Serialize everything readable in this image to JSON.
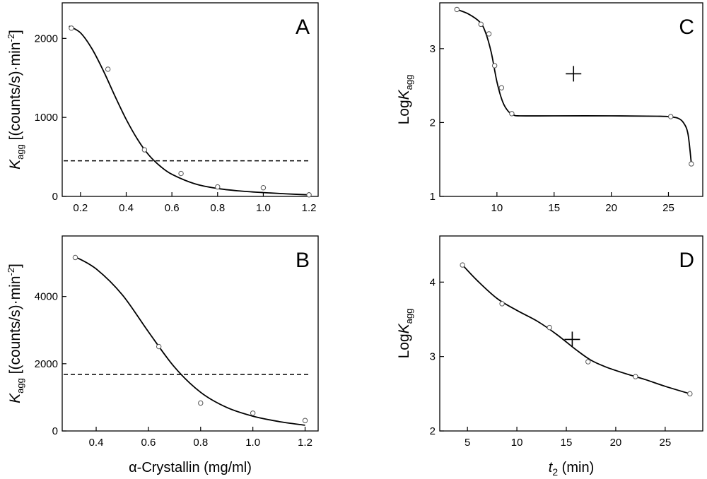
{
  "chart_data": [
    {
      "panel": "A",
      "type": "scatter",
      "xlim": [
        0.12,
        1.24
      ],
      "ylim": [
        0,
        2450
      ],
      "xticks": [
        0.2,
        0.4,
        0.6,
        0.8,
        1.0,
        1.2
      ],
      "xtick_labels": [
        "0.2",
        "0.4",
        "0.6",
        "0.8",
        "1.0",
        "1.2"
      ],
      "yticks": [
        0,
        1000,
        2000
      ],
      "ytick_labels": [
        "0",
        "1000",
        "2000"
      ],
      "points": [
        [
          0.16,
          2130
        ],
        [
          0.32,
          1610
        ],
        [
          0.48,
          590
        ],
        [
          0.64,
          290
        ],
        [
          0.8,
          120
        ],
        [
          1.0,
          110
        ],
        [
          1.2,
          20
        ]
      ],
      "fit": [
        [
          0.15,
          2155
        ],
        [
          0.2,
          2070
        ],
        [
          0.25,
          1870
        ],
        [
          0.3,
          1590
        ],
        [
          0.35,
          1275
        ],
        [
          0.4,
          975
        ],
        [
          0.45,
          720
        ],
        [
          0.5,
          520
        ],
        [
          0.55,
          380
        ],
        [
          0.6,
          280
        ],
        [
          0.7,
          160
        ],
        [
          0.8,
          100
        ],
        [
          0.9,
          68
        ],
        [
          1.0,
          48
        ],
        [
          1.1,
          32
        ],
        [
          1.2,
          20
        ]
      ],
      "dashed_y": 450,
      "ylabel": {
        "main": "K",
        "sub": "agg",
        "rest": " [(counts/s)·min",
        "sup": "-2",
        "end": "]"
      }
    },
    {
      "panel": "B",
      "type": "scatter",
      "xlim": [
        0.27,
        1.25
      ],
      "ylim": [
        0,
        5800
      ],
      "xticks": [
        0.4,
        0.6,
        0.8,
        1.0,
        1.2
      ],
      "xtick_labels": [
        "0.4",
        "0.6",
        "0.8",
        "1.0",
        "1.2"
      ],
      "yticks": [
        0,
        2000,
        4000
      ],
      "ytick_labels": [
        "0",
        "2000",
        "4000"
      ],
      "points": [
        [
          0.32,
          5160
        ],
        [
          0.64,
          2510
        ],
        [
          0.8,
          830
        ],
        [
          1.0,
          530
        ],
        [
          1.2,
          310
        ]
      ],
      "fit": [
        [
          0.32,
          5180
        ],
        [
          0.4,
          4820
        ],
        [
          0.5,
          4050
        ],
        [
          0.6,
          2950
        ],
        [
          0.7,
          1900
        ],
        [
          0.8,
          1150
        ],
        [
          0.9,
          700
        ],
        [
          1.0,
          440
        ],
        [
          1.1,
          280
        ],
        [
          1.2,
          170
        ]
      ],
      "dashed_y": 1680,
      "xlabel": "α-Crystallin (mg/ml)",
      "ylabel": {
        "main": "K",
        "sub": "agg",
        "rest": " [(counts/s)·min",
        "sup": "-2",
        "end": "]"
      }
    },
    {
      "panel": "C",
      "type": "scatter",
      "xlim": [
        5,
        28
      ],
      "ylim": [
        1,
        3.62
      ],
      "xticks": [
        10,
        15,
        20,
        25
      ],
      "xtick_labels": [
        "10",
        "15",
        "20",
        "25"
      ],
      "yticks": [
        1,
        2,
        3
      ],
      "ytick_labels": [
        "1",
        "2",
        "3"
      ],
      "points": [
        [
          6.5,
          3.53
        ],
        [
          8.6,
          3.33
        ],
        [
          9.3,
          3.2
        ],
        [
          9.8,
          2.77
        ],
        [
          10.4,
          2.47
        ],
        [
          11.3,
          2.12
        ],
        [
          25.2,
          2.08
        ],
        [
          27.0,
          1.44
        ]
      ],
      "fit": [
        [
          6.5,
          3.53
        ],
        [
          7.5,
          3.47
        ],
        [
          8.5,
          3.36
        ],
        [
          9.0,
          3.22
        ],
        [
          9.5,
          2.95
        ],
        [
          10.0,
          2.55
        ],
        [
          10.5,
          2.28
        ],
        [
          11.0,
          2.15
        ],
        [
          11.5,
          2.1
        ],
        [
          12.0,
          2.09
        ],
        [
          15,
          2.09
        ],
        [
          20,
          2.09
        ],
        [
          24.0,
          2.085
        ],
        [
          25.0,
          2.08
        ],
        [
          25.8,
          2.06
        ],
        [
          26.3,
          2.0
        ],
        [
          26.7,
          1.85
        ],
        [
          27.0,
          1.45
        ]
      ],
      "cross": [
        16.7,
        2.66
      ],
      "ylabel": {
        "main": "Log",
        "italic": "K",
        "sub": "agg"
      }
    },
    {
      "panel": "D",
      "type": "scatter",
      "xlim": [
        2.2,
        28.8
      ],
      "ylim": [
        2,
        4.62
      ],
      "xticks": [
        5,
        10,
        15,
        20,
        25
      ],
      "xtick_labels": [
        "5",
        "10",
        "15",
        "20",
        "25"
      ],
      "yticks": [
        2,
        3,
        4
      ],
      "ytick_labels": [
        "2",
        "3",
        "4"
      ],
      "points": [
        [
          4.5,
          4.23
        ],
        [
          8.5,
          3.71
        ],
        [
          13.3,
          3.39
        ],
        [
          17.2,
          2.93
        ],
        [
          22.0,
          2.73
        ],
        [
          27.5,
          2.5
        ]
      ],
      "fit": [
        [
          4.5,
          4.23
        ],
        [
          6,
          4.02
        ],
        [
          8,
          3.78
        ],
        [
          10,
          3.62
        ],
        [
          12,
          3.48
        ],
        [
          14,
          3.3
        ],
        [
          16,
          3.09
        ],
        [
          17.5,
          2.95
        ],
        [
          19,
          2.86
        ],
        [
          21,
          2.77
        ],
        [
          23,
          2.69
        ],
        [
          25,
          2.6
        ],
        [
          27.5,
          2.5
        ]
      ],
      "cross": [
        15.6,
        3.23
      ],
      "xlabel": {
        "italic": "t",
        "sub": "2",
        "rest": " (min)"
      },
      "ylabel": {
        "main": "Log",
        "italic": "K",
        "sub": "agg"
      }
    }
  ]
}
